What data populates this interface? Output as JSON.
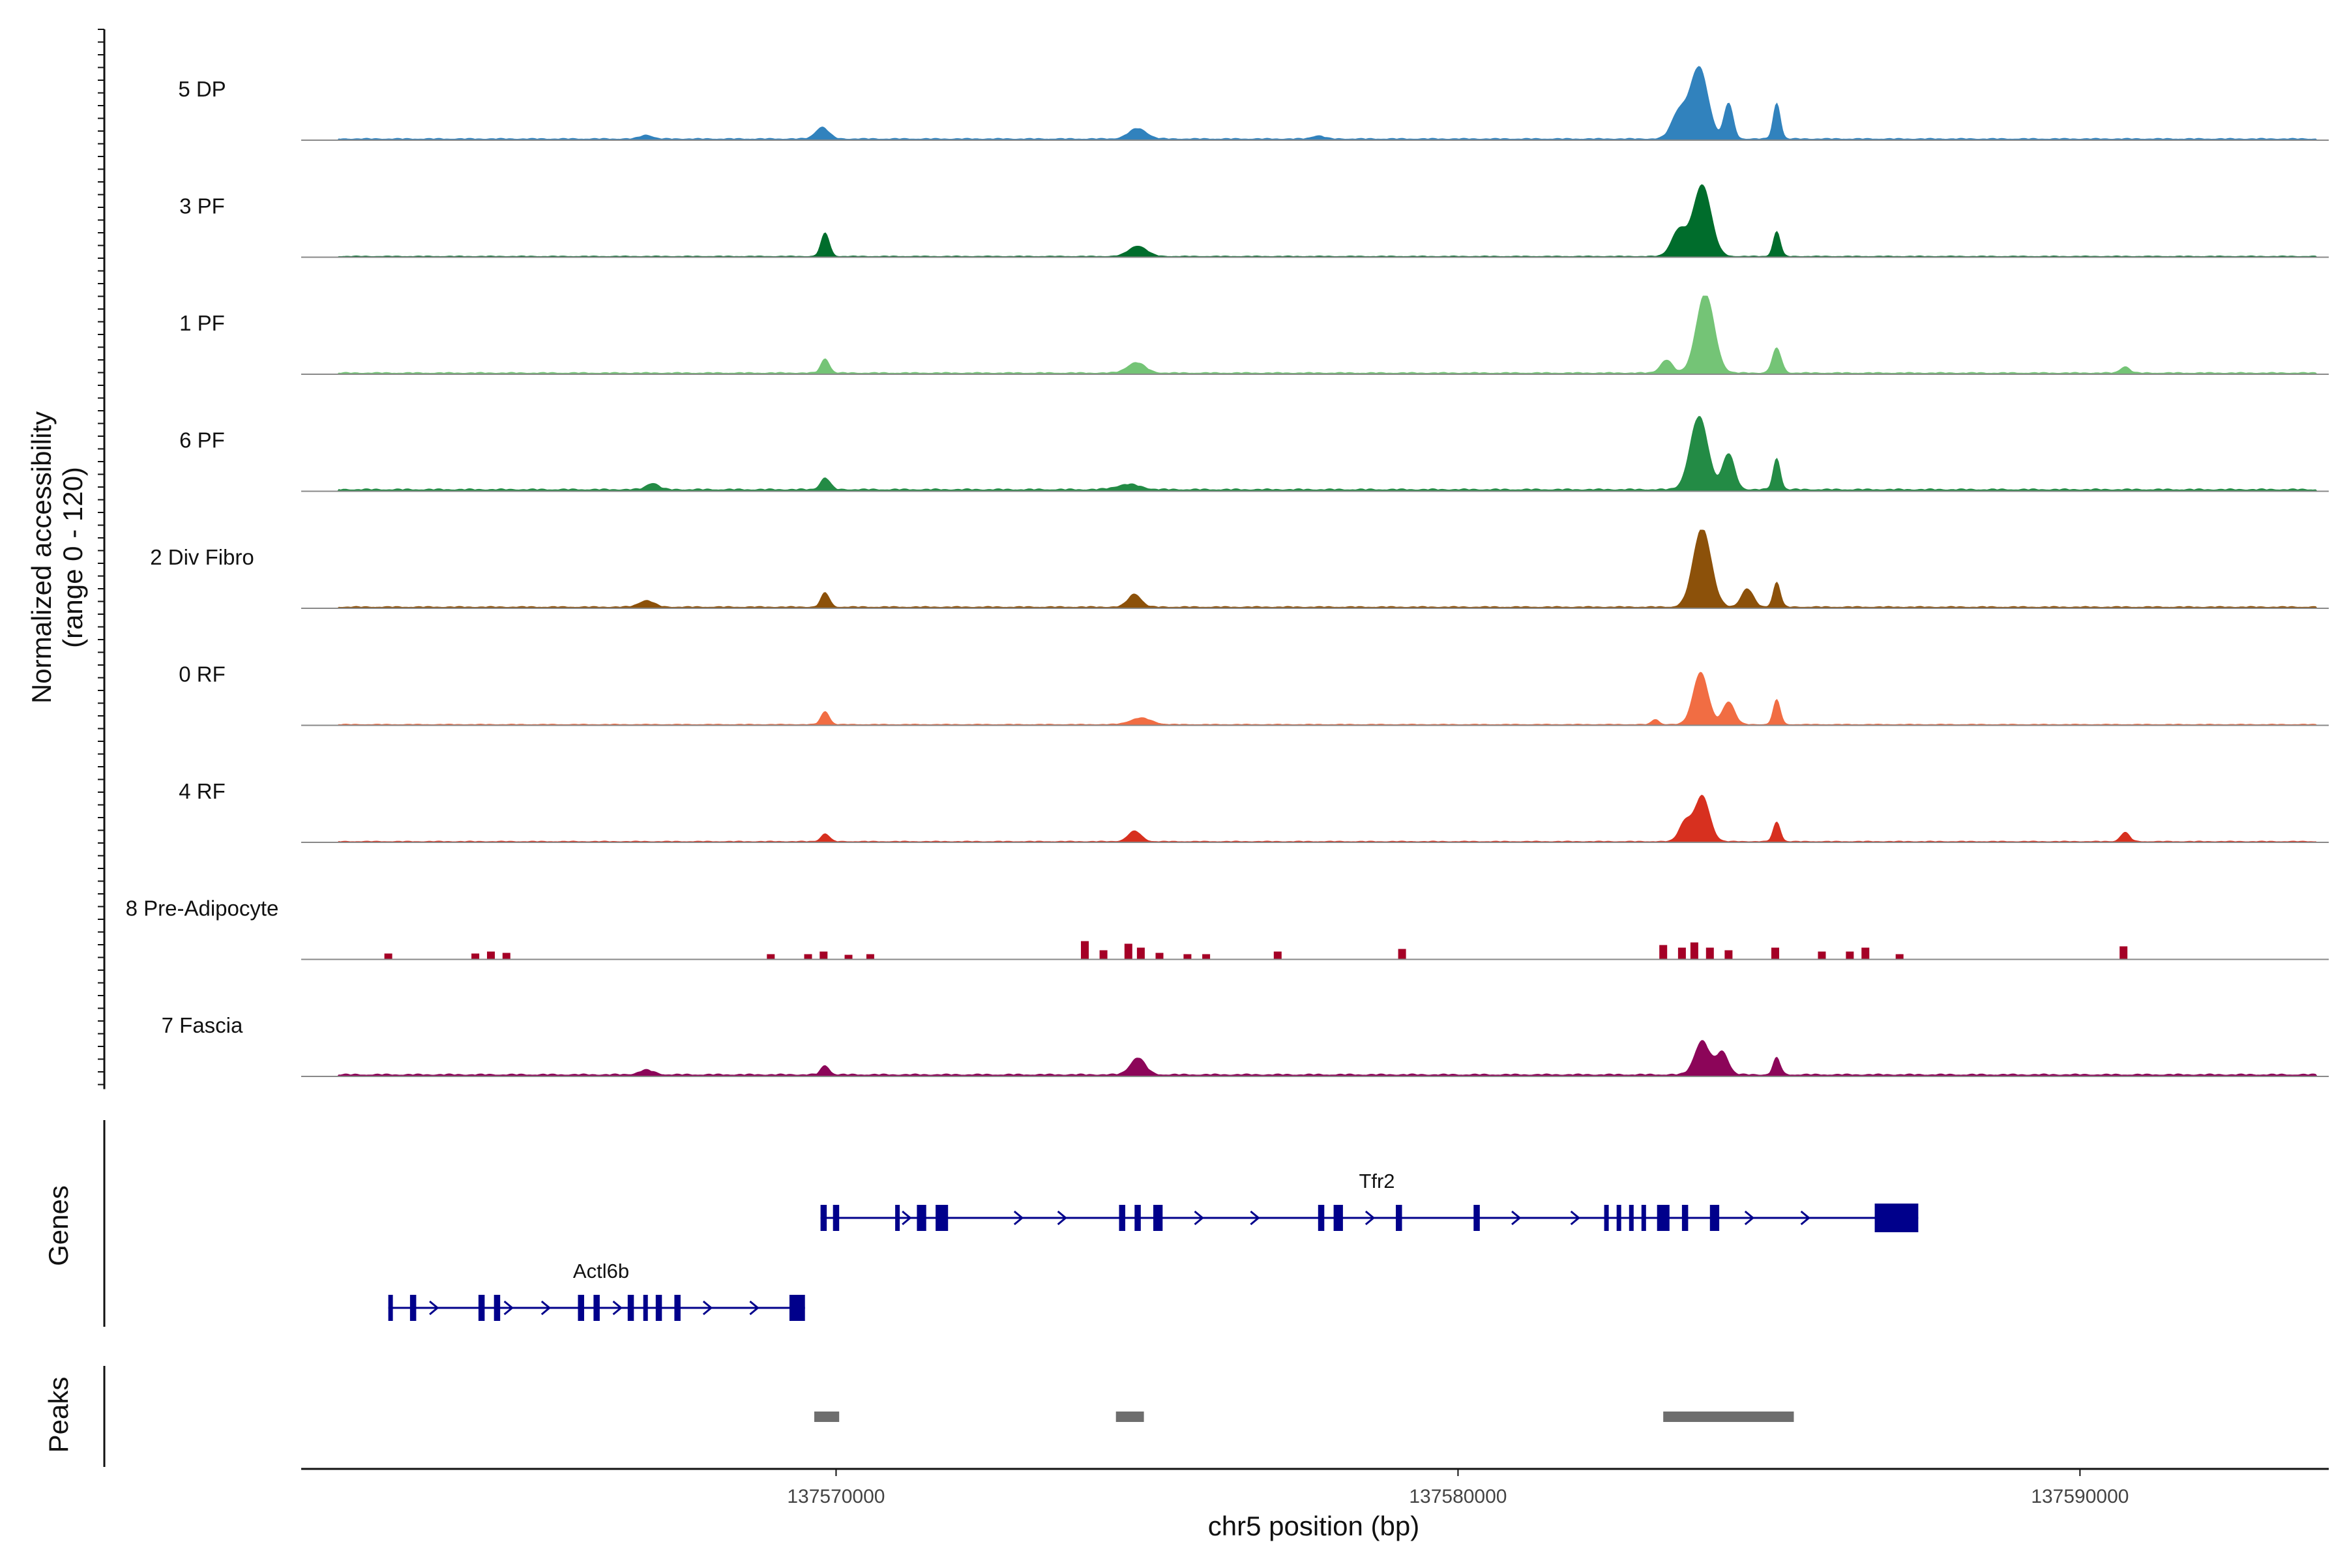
{
  "chart_data": {
    "type": "area",
    "xlabel": "chr5 position (bp)",
    "ylabel": "Normalized accessibility",
    "ylabel_range": "(range 0 - 120)",
    "ylim": [
      0,
      120
    ],
    "xlim": [
      137561400,
      137594000
    ],
    "x_ticks": [
      137570000,
      137580000,
      137590000
    ],
    "x_tick_labels": [
      "137570000",
      "137580000",
      "137590000"
    ],
    "tracks": [
      {
        "name": "5 DP",
        "color": "#3182bd",
        "peaks": [
          [
            137562000,
            137593800,
            3,
            6000
          ],
          [
            137569700,
            137569850,
            18,
            220
          ],
          [
            137574800,
            137574900,
            16,
            300
          ],
          [
            137583750,
            137584000,
            110,
            300
          ],
          [
            137583400,
            137583700,
            40,
            250
          ],
          [
            137584300,
            137584400,
            55,
            150
          ],
          [
            137585100,
            137585150,
            55,
            120
          ],
          [
            137566900,
            137567000,
            6,
            200
          ],
          [
            137577700,
            137577800,
            5,
            200
          ]
        ]
      },
      {
        "name": "3 PF",
        "color": "#006d2c",
        "peaks": [
          [
            137562000,
            137593800,
            2,
            6000
          ],
          [
            137569800,
            137569850,
            36,
            140
          ],
          [
            137574800,
            137574900,
            16,
            300
          ],
          [
            137583900,
            137583950,
            110,
            300
          ],
          [
            137583500,
            137583600,
            40,
            250
          ],
          [
            137585100,
            137585150,
            38,
            120
          ]
        ]
      },
      {
        "name": "1 PF",
        "color": "#74c476",
        "peaks": [
          [
            137562000,
            137593800,
            3,
            6000
          ],
          [
            137569800,
            137569850,
            22,
            140
          ],
          [
            137574750,
            137574900,
            16,
            300
          ],
          [
            137583950,
            137584000,
            122,
            300
          ],
          [
            137583300,
            137583400,
            20,
            200
          ],
          [
            137585100,
            137585150,
            38,
            150
          ],
          [
            137590700,
            137590750,
            10,
            150
          ]
        ]
      },
      {
        "name": "6 PF",
        "color": "#238b45",
        "peaks": [
          [
            137562000,
            137593800,
            4,
            6000
          ],
          [
            137569800,
            137569850,
            18,
            160
          ],
          [
            137583850,
            137583900,
            112,
            300
          ],
          [
            137584300,
            137584400,
            55,
            200
          ],
          [
            137585100,
            137585150,
            48,
            120
          ],
          [
            137567000,
            137567100,
            10,
            200
          ],
          [
            137574600,
            137574800,
            8,
            400
          ]
        ]
      },
      {
        "name": "2 Div Fibro",
        "color": "#8c510a",
        "peaks": [
          [
            137562000,
            137593800,
            3,
            6000
          ],
          [
            137569800,
            137569850,
            22,
            140
          ],
          [
            137574750,
            137574850,
            20,
            220
          ],
          [
            137583900,
            137583950,
            122,
            300
          ],
          [
            137584600,
            137584700,
            28,
            200
          ],
          [
            137585100,
            137585150,
            38,
            120
          ],
          [
            137566900,
            137567000,
            10,
            250
          ]
        ]
      },
      {
        "name": "0 RF",
        "color": "#f16d43",
        "peaks": [
          [
            137562000,
            137593800,
            2,
            6000
          ],
          [
            137569800,
            137569850,
            20,
            140
          ],
          [
            137574850,
            137574950,
            10,
            350
          ],
          [
            137583850,
            137583950,
            80,
            250
          ],
          [
            137584300,
            137584400,
            35,
            200
          ],
          [
            137585100,
            137585150,
            38,
            120
          ],
          [
            137583150,
            137583200,
            8,
            120
          ]
        ]
      },
      {
        "name": "4 RF",
        "color": "#d7301f",
        "peaks": [
          [
            137562000,
            137593800,
            2,
            6000
          ],
          [
            137569800,
            137569850,
            12,
            140
          ],
          [
            137574750,
            137574850,
            16,
            220
          ],
          [
            137583900,
            137583950,
            70,
            250
          ],
          [
            137583600,
            137583700,
            30,
            200
          ],
          [
            137585100,
            137585150,
            30,
            120
          ],
          [
            137590700,
            137590750,
            14,
            150
          ]
        ]
      },
      {
        "name": "8 Pre-Adipocyte",
        "color": "#a50026",
        "bars": [
          [
            137562800,
            9
          ],
          [
            137564200,
            9
          ],
          [
            137564450,
            12
          ],
          [
            137564700,
            10
          ],
          [
            137568950,
            8
          ],
          [
            137569550,
            8
          ],
          [
            137569800,
            12
          ],
          [
            137570200,
            7
          ],
          [
            137570550,
            8
          ],
          [
            137574000,
            28
          ],
          [
            137574300,
            14
          ],
          [
            137574700,
            24
          ],
          [
            137574900,
            18
          ],
          [
            137575200,
            10
          ],
          [
            137575650,
            8
          ],
          [
            137575950,
            8
          ],
          [
            137577100,
            12
          ],
          [
            137579100,
            16
          ],
          [
            137583300,
            22
          ],
          [
            137583600,
            18
          ],
          [
            137583800,
            26
          ],
          [
            137584050,
            18
          ],
          [
            137584350,
            14
          ],
          [
            137585100,
            18
          ],
          [
            137585850,
            12
          ],
          [
            137586300,
            12
          ],
          [
            137586550,
            18
          ],
          [
            137587100,
            8
          ],
          [
            137590700,
            20
          ]
        ]
      },
      {
        "name": "7 Fascia",
        "color": "#8c0559",
        "peaks": [
          [
            137562000,
            137593800,
            4,
            6000
          ],
          [
            137569800,
            137569850,
            14,
            140
          ],
          [
            137574800,
            137574900,
            26,
            250
          ],
          [
            137583900,
            137583950,
            52,
            250
          ],
          [
            137584200,
            137584300,
            35,
            200
          ],
          [
            137585100,
            137585150,
            26,
            120
          ],
          [
            137566900,
            137567000,
            7,
            250
          ]
        ]
      }
    ],
    "genes": [
      {
        "name": "Tfr2",
        "start": 137569750,
        "end": 137587400,
        "row": 1,
        "exons": [
          [
            137569750,
            137569850
          ],
          [
            137569950,
            137570050
          ],
          [
            137570950,
            137571000
          ],
          [
            137571300,
            137571450
          ],
          [
            137571600,
            137571800
          ],
          [
            137574550,
            137574650
          ],
          [
            137574800,
            137574900
          ],
          [
            137575100,
            137575250
          ],
          [
            137577750,
            137577850
          ],
          [
            137578000,
            137578150
          ],
          [
            137579000,
            137579100
          ],
          [
            137580250,
            137580350
          ],
          [
            137582350,
            137582400
          ],
          [
            137582550,
            137582600
          ],
          [
            137582750,
            137582800
          ],
          [
            137582950,
            137583000
          ],
          [
            137583200,
            137583400
          ],
          [
            137583600,
            137583700
          ],
          [
            137584050,
            137584200
          ],
          [
            137586700,
            137587400
          ]
        ],
        "arrows": [
          137571150,
          137572950,
          137573650,
          137575850,
          137576750,
          137578600,
          137580950,
          137581900,
          137584700,
          137585600
        ]
      },
      {
        "name": "Actl6b",
        "start": 137562800,
        "end": 137569500,
        "row": 2,
        "exons": [
          [
            137562800,
            137562850
          ],
          [
            137563150,
            137563250
          ],
          [
            137564250,
            137564350
          ],
          [
            137564500,
            137564600
          ],
          [
            137565850,
            137565950
          ],
          [
            137566100,
            137566200
          ],
          [
            137566650,
            137566750
          ],
          [
            137566900,
            137566950
          ],
          [
            137567100,
            137567200
          ],
          [
            137567400,
            137567500
          ],
          [
            137569250,
            137569500
          ]
        ],
        "arrows": [
          137563550,
          137564750,
          137565350,
          137566500,
          137567950,
          137568700
        ]
      }
    ],
    "peak_regions": [
      [
        137569650,
        137570050
      ],
      [
        137574500,
        137574950
      ],
      [
        137583300,
        137585400
      ]
    ],
    "side_labels": {
      "genes": "Genes",
      "peaks": "Peaks"
    }
  }
}
